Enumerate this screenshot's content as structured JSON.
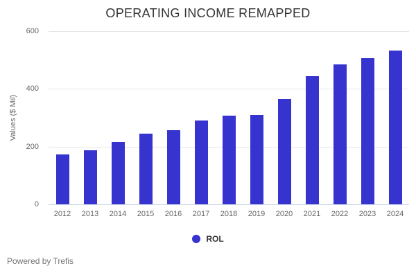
{
  "chart_data": {
    "type": "bar",
    "title": "OPERATING INCOME REMAPPED",
    "xlabel": "",
    "ylabel": "Values ($ Mil)",
    "categories": [
      "2012",
      "2013",
      "2014",
      "2015",
      "2016",
      "2017",
      "2018",
      "2019",
      "2020",
      "2021",
      "2022",
      "2023",
      "2024"
    ],
    "series": [
      {
        "name": "ROL",
        "color": "#3733cf",
        "values": [
          173,
          187,
          216,
          245,
          257,
          291,
          307,
          309,
          366,
          443,
          486,
          507,
          533
        ]
      }
    ],
    "ylim": [
      0,
      600
    ],
    "y_ticks": [
      0,
      200,
      400,
      600
    ],
    "grid": true,
    "legend_position": "bottom"
  },
  "footer": {
    "text": "Powered by Trefis"
  },
  "colors": {
    "background": "#ffffff",
    "bar": "#3733cf",
    "gridline": "#e6e6e6",
    "axis_line": "#ccd6eb",
    "tick_label": "#666666",
    "title_text": "#333333",
    "legend_text": "#333333",
    "footer_text": "#757575"
  }
}
